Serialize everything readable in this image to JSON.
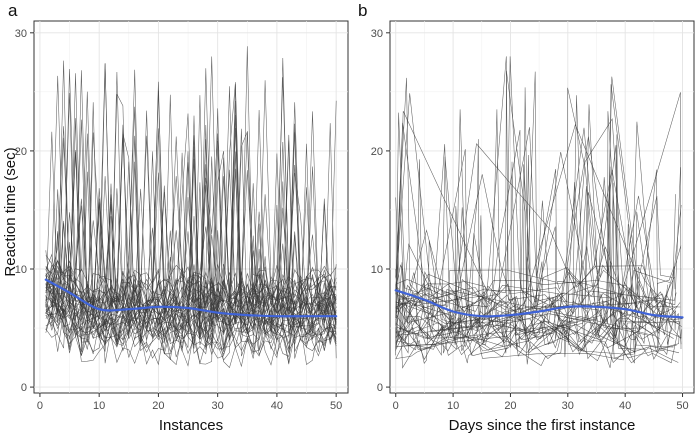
{
  "figure": {
    "ylabel": "Reaction time (sec)"
  },
  "chart_data": [
    {
      "type": "line",
      "panel_label": "a",
      "xlabel": "Instances",
      "ylabel": "Reaction time (sec)",
      "xlim": [
        -1,
        52
      ],
      "ylim": [
        -0.5,
        31
      ],
      "x_ticks": [
        0,
        10,
        20,
        30,
        40,
        50
      ],
      "y_ticks": [
        0,
        10,
        20,
        30
      ],
      "grid": true,
      "n_individual_series": 45,
      "individual_series_color": "#3a3a3a",
      "individual_series_note": "thin gray lines, one per participant, reaction time per instance (approx. range 0-29 sec)",
      "smooth": {
        "name": "smoothed mean",
        "color": "#3f63d8",
        "x": [
          1,
          5,
          10,
          15,
          20,
          25,
          30,
          35,
          40,
          45,
          50
        ],
        "y": [
          9.1,
          8.0,
          6.6,
          6.6,
          6.8,
          6.7,
          6.3,
          6.1,
          6.0,
          6.0,
          6.0
        ]
      }
    },
    {
      "type": "line",
      "panel_label": "b",
      "xlabel": "Days since the first instance",
      "ylabel": "Reaction time (sec)",
      "xlim": [
        -1,
        52
      ],
      "ylim": [
        -0.5,
        31
      ],
      "x_ticks": [
        0,
        10,
        20,
        30,
        40,
        50
      ],
      "y_ticks": [
        0,
        10,
        20,
        30
      ],
      "grid": true,
      "n_individual_series": 45,
      "individual_series_color": "#3a3a3a",
      "individual_series_note": "thin gray lines, one per participant, reaction time vs days since first instance (approx. range 0-28 sec)",
      "smooth": {
        "name": "smoothed mean",
        "color": "#3f63d8",
        "x": [
          0,
          5,
          10,
          15,
          20,
          25,
          30,
          35,
          40,
          45,
          50
        ],
        "y": [
          8.2,
          7.4,
          6.4,
          6.0,
          6.1,
          6.4,
          6.8,
          6.8,
          6.6,
          6.1,
          5.9
        ]
      }
    }
  ]
}
